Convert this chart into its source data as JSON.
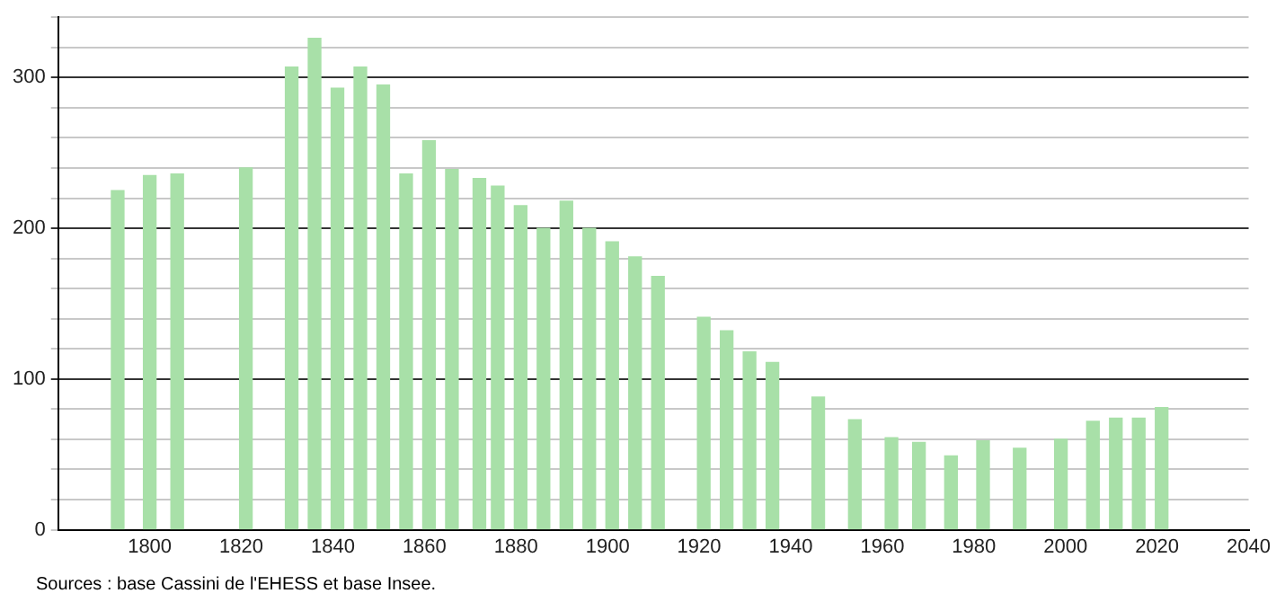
{
  "chart_data": {
    "type": "bar",
    "x": [
      1793,
      1800,
      1806,
      1821,
      1831,
      1836,
      1841,
      1846,
      1851,
      1856,
      1861,
      1866,
      1872,
      1876,
      1881,
      1886,
      1891,
      1896,
      1901,
      1906,
      1911,
      1921,
      1926,
      1931,
      1936,
      1946,
      1954,
      1962,
      1968,
      1975,
      1982,
      1990,
      1999,
      2006,
      2011,
      2016,
      2021
    ],
    "values": [
      225,
      235,
      236,
      240,
      307,
      326,
      293,
      307,
      295,
      236,
      258,
      239,
      233,
      228,
      215,
      200,
      218,
      200,
      191,
      181,
      168,
      141,
      132,
      118,
      111,
      88,
      73,
      61,
      58,
      49,
      59,
      54,
      60,
      72,
      74,
      74,
      81
    ],
    "color": "#a8e0a8",
    "xlim": [
      1780,
      2040
    ],
    "xticks": [
      1800,
      1820,
      1840,
      1860,
      1880,
      1900,
      1920,
      1940,
      1960,
      1980,
      2000,
      2020,
      2040
    ],
    "ylim": [
      0,
      340
    ],
    "yticks": [
      0,
      {
        "value": 20,
        "label": null
      },
      {
        "value": 40,
        "label": null
      },
      {
        "value": 60,
        "label": null
      },
      {
        "value": 80,
        "label": null
      },
      100,
      {
        "value": 120,
        "label": null
      },
      {
        "value": 140,
        "label": null
      },
      {
        "value": 160,
        "label": null
      },
      {
        "value": 180,
        "label": null
      },
      200,
      {
        "value": 220,
        "label": null
      },
      {
        "value": 240,
        "label": null
      },
      {
        "value": 260,
        "label": null
      },
      {
        "value": 280,
        "label": null
      },
      300,
      {
        "value": 320,
        "label": null
      },
      {
        "value": 340,
        "label": null
      }
    ],
    "grid": "y",
    "legend": false,
    "annotations": [
      "Sources : base Cassini de l'EHESS et base Insee."
    ]
  }
}
